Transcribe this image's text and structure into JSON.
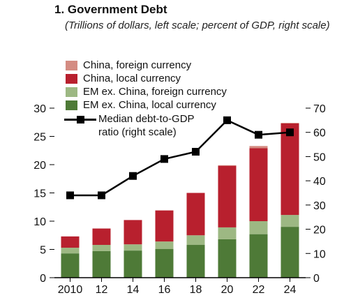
{
  "title": "1. Government Debt",
  "subtitle": "(Trillions of dollars, left scale; percent of GDP, right scale)",
  "colors": {
    "china_fx": "#d48c82",
    "china_local": "#b8202e",
    "em_fx": "#9db883",
    "em_local": "#4e7a37",
    "line": "#000000"
  },
  "legend": {
    "china_fx": "China, foreign currency",
    "china_local": "China, local currency",
    "em_fx": "EM ex. China, foreign currency",
    "em_local": "EM ex. China, local currency",
    "median": "Median debt-to-GDP ratio (right scale)"
  },
  "chart_data": {
    "type": "bar",
    "stacked": true,
    "categories": [
      "2010",
      "12",
      "14",
      "16",
      "18",
      "20",
      "22",
      "24"
    ],
    "left_axis": {
      "min": 0,
      "max": 30,
      "ticks": [
        0,
        5,
        10,
        15,
        20,
        25,
        30
      ]
    },
    "right_axis": {
      "min": 0,
      "max": 70,
      "ticks": [
        0,
        10,
        20,
        30,
        40,
        50,
        60,
        70
      ]
    },
    "series": [
      {
        "key": "em_local",
        "name": "EM ex. China, local currency",
        "values": [
          4.3,
          4.7,
          4.8,
          5.1,
          5.8,
          6.8,
          7.7,
          9.0
        ]
      },
      {
        "key": "em_fx",
        "name": "EM ex. China, foreign currency",
        "values": [
          1.0,
          1.1,
          1.1,
          1.3,
          1.7,
          2.1,
          2.3,
          2.1
        ]
      },
      {
        "key": "china_local",
        "name": "China, local currency",
        "values": [
          2.0,
          2.9,
          4.3,
          5.5,
          7.5,
          10.9,
          12.9,
          16.2
        ]
      },
      {
        "key": "china_fx",
        "name": "China, foreign currency",
        "values": [
          0,
          0,
          0,
          0,
          0,
          0.1,
          0.4,
          0.1
        ]
      }
    ],
    "line": {
      "name": "Median debt-to-GDP ratio (right scale)",
      "axis": "right",
      "values": [
        34,
        34,
        42,
        49,
        52,
        65,
        59,
        60
      ]
    }
  }
}
